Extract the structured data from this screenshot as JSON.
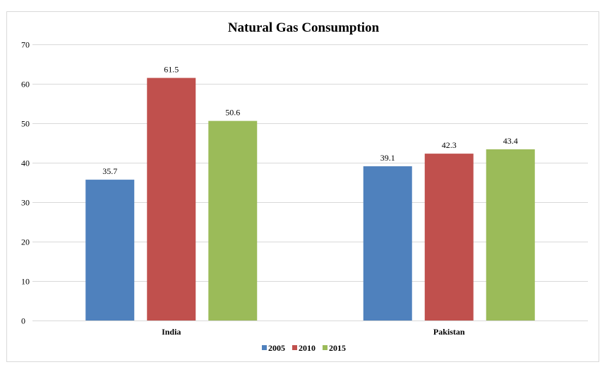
{
  "chart_data": {
    "type": "bar",
    "title": "Natural Gas Consumption",
    "categories": [
      "India",
      "Pakistan"
    ],
    "series": [
      {
        "name": "2005",
        "values": [
          35.7,
          39.1
        ],
        "color": "#4f81bd"
      },
      {
        "name": "2010",
        "values": [
          61.5,
          42.3
        ],
        "color": "#c0504d"
      },
      {
        "name": "2015",
        "values": [
          50.6,
          43.4
        ],
        "color": "#9bbb59"
      }
    ],
    "data_labels": [
      [
        "35.7",
        "39.1"
      ],
      [
        "61.5",
        "42.3"
      ],
      [
        "50.6",
        "43.4"
      ]
    ],
    "yticks": [
      "0",
      "10",
      "20",
      "30",
      "40",
      "50",
      "60",
      "70"
    ],
    "ylim": [
      0,
      70
    ],
    "xlabel": "",
    "ylabel": "",
    "grid": true,
    "legend_position": "bottom"
  }
}
